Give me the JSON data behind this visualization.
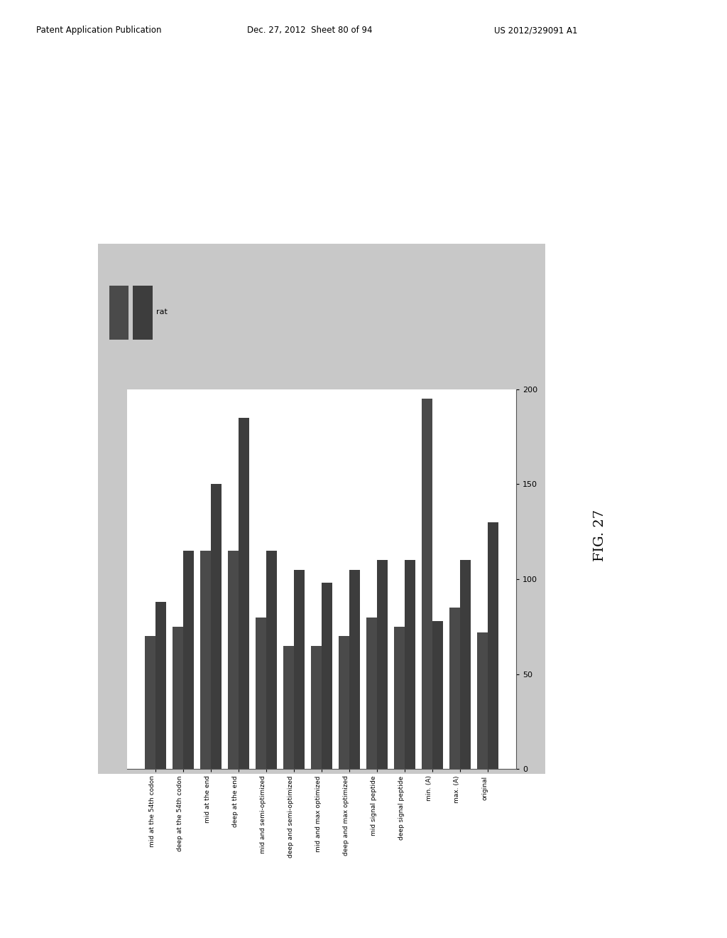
{
  "legend_label": "rat",
  "bar_color1": "#4a4a4a",
  "bar_color2": "#3d3d3d",
  "background_outer": "#c8c8c8",
  "background_inner": "#ffffff",
  "fig_background": "#ffffff",
  "categories": [
    "mid at the 54th codon",
    "deep at the 54th codon",
    "mid at the end",
    "deep at the end",
    "mid and semi-optimized",
    "deep and semi-optimized",
    "mid and max optimized",
    "deep and max optimized",
    "mid signal peptide",
    "deep signal peptide",
    "min. (A)",
    "max. (A)",
    "original"
  ],
  "series1": [
    70,
    75,
    115,
    115,
    80,
    65,
    65,
    70,
    80,
    75,
    195,
    85,
    72
  ],
  "series2": [
    88,
    115,
    150,
    185,
    115,
    105,
    98,
    105,
    110,
    110,
    78,
    110,
    130
  ],
  "ylim": [
    0,
    200
  ],
  "yticks": [
    0,
    50,
    100,
    150,
    200
  ],
  "header_left": "Patent Application Publication",
  "header_mid": "Dec. 27, 2012  Sheet 80 of 94",
  "header_right": "US 2012/329091 A1",
  "fig_label": "FIG. 27"
}
